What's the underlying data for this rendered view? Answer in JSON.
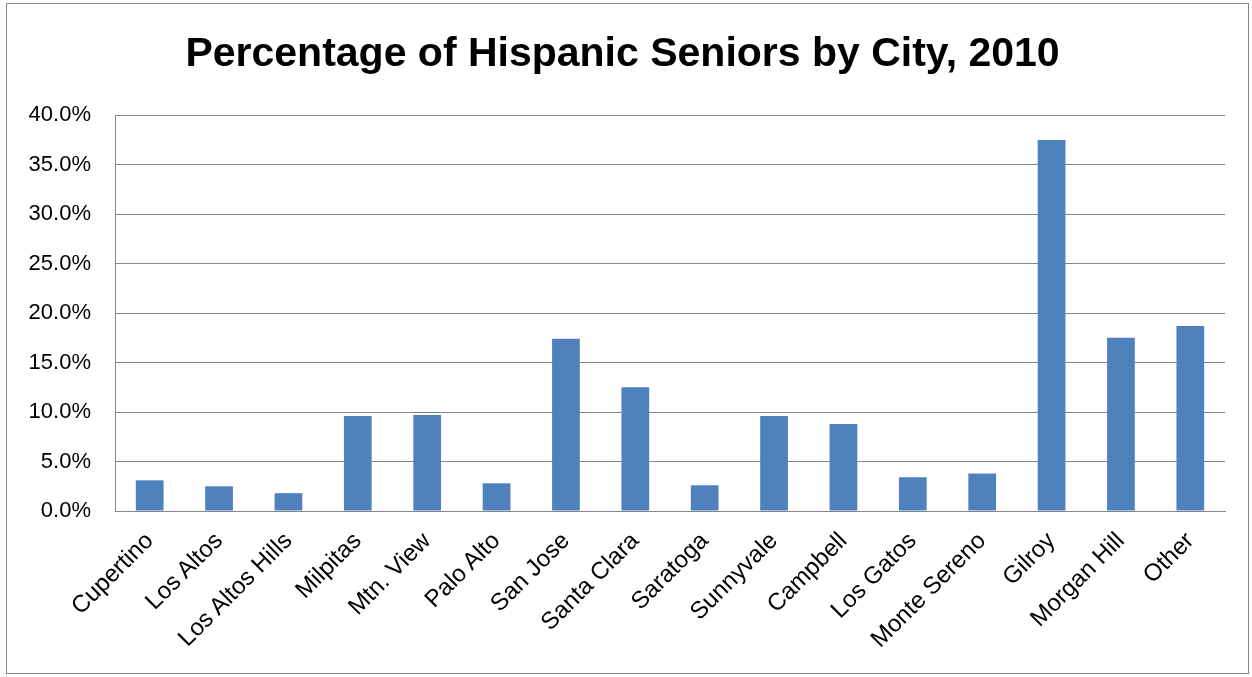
{
  "chart_data": {
    "type": "bar",
    "title": "Percentage of Hispanic Seniors by City, 2010",
    "categories": [
      "Cupertino",
      "Los Altos",
      "Los Altos Hills",
      "Milpitas",
      "Mtn. View",
      "Palo Alto",
      "San Jose",
      "Santa Clara",
      "Saratoga",
      "Sunnyvale",
      "Campbell",
      "Los Gatos",
      "Monte Sereno",
      "Gilroy",
      "Morgan Hill",
      "Other"
    ],
    "values": [
      3.1,
      2.5,
      1.8,
      9.6,
      9.7,
      2.8,
      17.4,
      12.5,
      2.6,
      9.6,
      8.8,
      3.4,
      3.8,
      37.5,
      17.5,
      18.7
    ],
    "color": "#4f81bd",
    "ylim": [
      0,
      40
    ],
    "yticks": [
      {
        "value": 0,
        "label": "0.0%"
      },
      {
        "value": 5,
        "label": "5.0%"
      },
      {
        "value": 10,
        "label": "10.0%"
      },
      {
        "value": 15,
        "label": "15.0%"
      },
      {
        "value": 20,
        "label": "20.0%"
      },
      {
        "value": 25,
        "label": "25.0%"
      },
      {
        "value": 30,
        "label": "30.0%"
      },
      {
        "value": 35,
        "label": "35.0%"
      },
      {
        "value": 40,
        "label": "40.0%"
      }
    ],
    "grid": "y",
    "legend": false
  }
}
